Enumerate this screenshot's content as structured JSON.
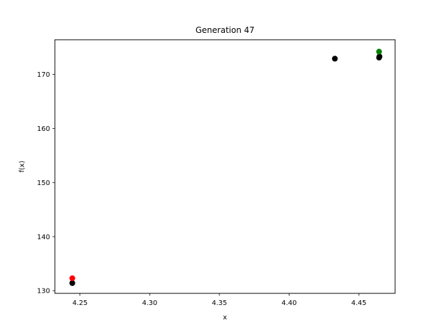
{
  "chart_data": {
    "type": "scatter",
    "title": "Generation 47",
    "xlabel": "x",
    "ylabel": "f(x)",
    "xlim": [
      4.232,
      4.476
    ],
    "ylim": [
      129.5,
      176.4
    ],
    "xticks": [
      4.25,
      4.3,
      4.35,
      4.4,
      4.45
    ],
    "xtick_labels": [
      "4.25",
      "4.30",
      "4.35",
      "4.40",
      "4.45"
    ],
    "yticks": [
      130,
      140,
      150,
      160,
      170
    ],
    "ytick_labels": [
      "130",
      "140",
      "150",
      "160",
      "170"
    ],
    "grid": false,
    "series": [
      {
        "color": "#000000",
        "points": [
          {
            "x": 4.2445,
            "y": 131.4
          },
          {
            "x": 4.4328,
            "y": 172.9
          },
          {
            "x": 4.4645,
            "y": 173.1
          },
          {
            "x": 4.4648,
            "y": 173.3
          }
        ]
      },
      {
        "color": "#ff0000",
        "points": [
          {
            "x": 4.2445,
            "y": 132.3
          }
        ]
      },
      {
        "color": "#008000",
        "points": [
          {
            "x": 4.4645,
            "y": 174.2
          }
        ]
      }
    ]
  }
}
